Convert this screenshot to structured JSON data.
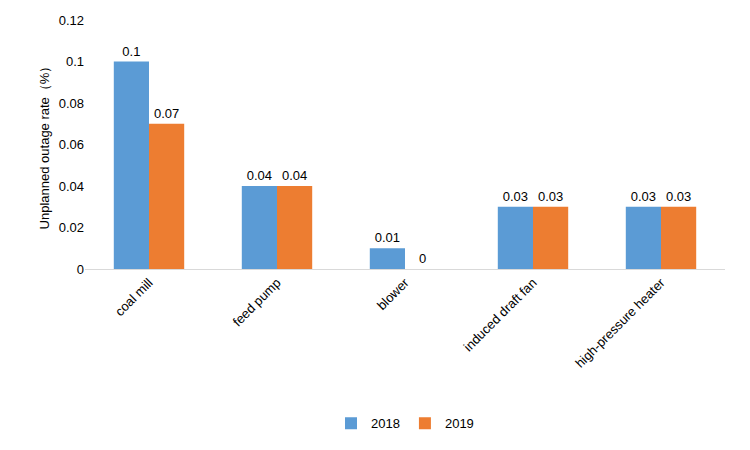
{
  "chart_data": {
    "type": "bar",
    "y_label": "Unplanned outage rate（%）",
    "categories": [
      "coal mill",
      "feed pump",
      "blower",
      "induced draft fan",
      "high-pressure heater"
    ],
    "series": [
      {
        "name": "2018",
        "color": "#5b9bd5",
        "values": [
          0.1,
          0.04,
          0.01,
          0.03,
          0.03
        ]
      },
      {
        "name": "2019",
        "color": "#ed7d31",
        "values": [
          0.07,
          0.04,
          0,
          0.03,
          0.03
        ]
      }
    ],
    "ylim": [
      0,
      0.12
    ],
    "yticks": [
      0,
      0.02,
      0.04,
      0.06,
      0.08,
      0.1,
      0.12
    ],
    "grid": false,
    "legend": "bottom",
    "data_labels": true
  }
}
